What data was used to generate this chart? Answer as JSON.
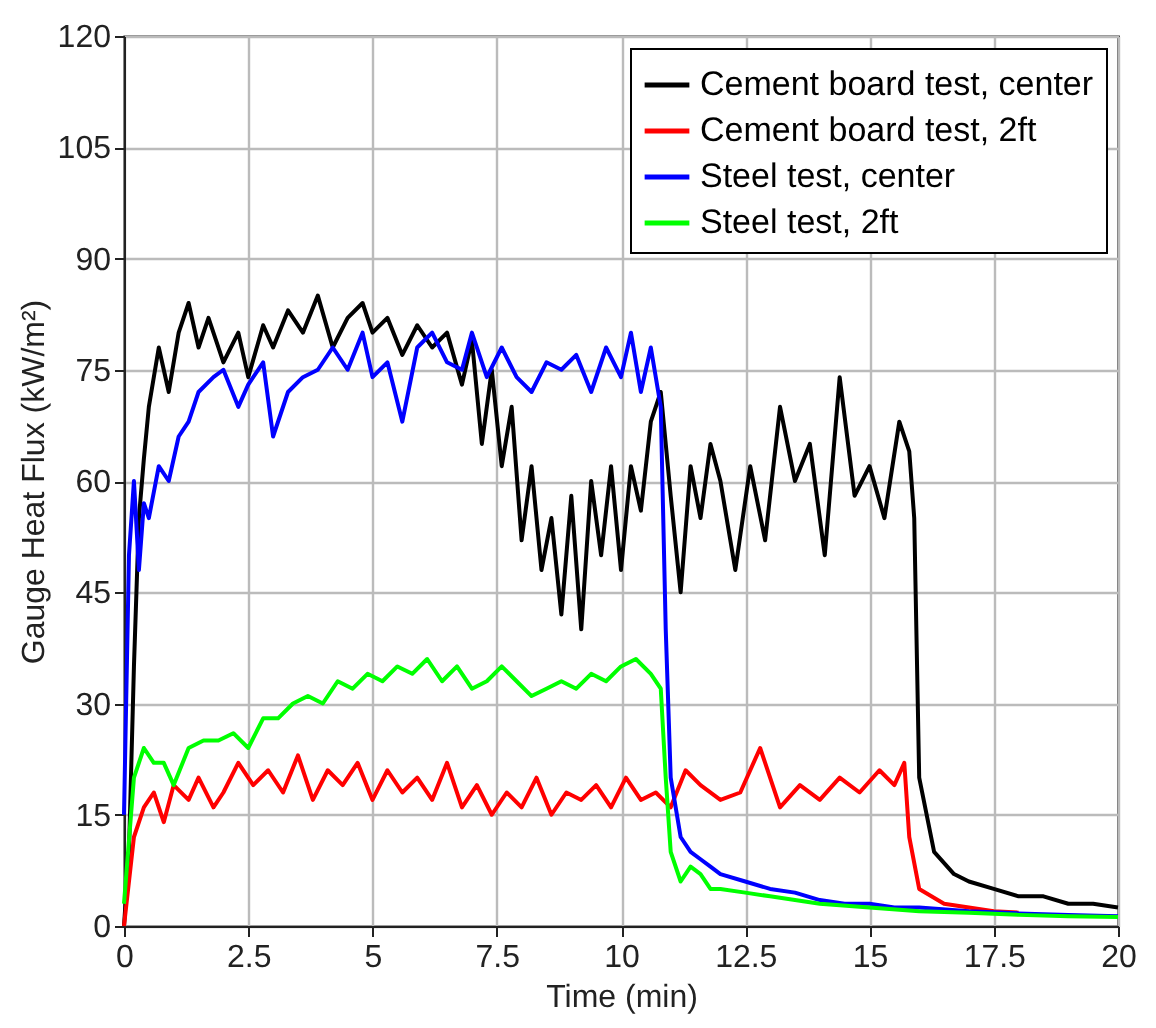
{
  "chart_data": {
    "type": "line",
    "xlabel": "Time (min)",
    "ylabel": "Gauge Heat Flux (kW/m²)",
    "xlim": [
      0,
      20
    ],
    "xticks": [
      0,
      2.5,
      5,
      7.5,
      10,
      12.5,
      15,
      17.5,
      20
    ],
    "ylim": [
      0,
      120
    ],
    "yticks": [
      0,
      15,
      30,
      45,
      60,
      75,
      90,
      105,
      120
    ],
    "grid": true,
    "legend": "top right",
    "line_style": "solid",
    "marker": "none",
    "series": [
      {
        "name": "Cement board test, center",
        "color": "#000000",
        "x": [
          0,
          0.1,
          0.2,
          0.3,
          0.4,
          0.5,
          0.7,
          0.9,
          1.1,
          1.3,
          1.5,
          1.7,
          2,
          2.3,
          2.5,
          2.8,
          3,
          3.3,
          3.6,
          3.9,
          4.2,
          4.5,
          4.8,
          5,
          5.3,
          5.6,
          5.9,
          6.2,
          6.5,
          6.8,
          7,
          7.2,
          7.4,
          7.6,
          7.8,
          8,
          8.2,
          8.4,
          8.6,
          8.8,
          9,
          9.2,
          9.4,
          9.6,
          9.8,
          10,
          10.2,
          10.4,
          10.6,
          10.8,
          11,
          11.2,
          11.4,
          11.6,
          11.8,
          12,
          12.3,
          12.6,
          12.9,
          13.2,
          13.5,
          13.8,
          14.1,
          14.4,
          14.7,
          15,
          15.3,
          15.6,
          15.8,
          15.9,
          16,
          16.3,
          16.7,
          17,
          17.5,
          18,
          18.5,
          19,
          19.5,
          20
        ],
        "values": [
          0,
          10,
          35,
          55,
          63,
          70,
          78,
          72,
          80,
          84,
          78,
          82,
          76,
          80,
          74,
          81,
          78,
          83,
          80,
          85,
          78,
          82,
          84,
          80,
          82,
          77,
          81,
          78,
          80,
          73,
          79,
          65,
          75,
          62,
          70,
          52,
          62,
          48,
          55,
          42,
          58,
          40,
          60,
          50,
          62,
          48,
          62,
          56,
          68,
          72,
          58,
          45,
          62,
          55,
          65,
          60,
          48,
          62,
          52,
          70,
          60,
          65,
          50,
          74,
          58,
          62,
          55,
          68,
          64,
          55,
          20,
          10,
          7,
          6,
          5,
          4,
          4,
          3,
          3,
          2.5
        ]
      },
      {
        "name": "Cement board test, 2ft",
        "color": "#ff0000",
        "x": [
          0,
          0.2,
          0.4,
          0.6,
          0.8,
          1,
          1.3,
          1.5,
          1.8,
          2,
          2.3,
          2.6,
          2.9,
          3.2,
          3.5,
          3.8,
          4.1,
          4.4,
          4.7,
          5,
          5.3,
          5.6,
          5.9,
          6.2,
          6.5,
          6.8,
          7.1,
          7.4,
          7.7,
          8,
          8.3,
          8.6,
          8.9,
          9.2,
          9.5,
          9.8,
          10.1,
          10.4,
          10.7,
          11,
          11.3,
          11.6,
          12,
          12.4,
          12.8,
          13.2,
          13.6,
          14,
          14.4,
          14.8,
          15.2,
          15.5,
          15.7,
          15.8,
          16,
          16.5,
          17,
          17.5,
          18
        ],
        "values": [
          0,
          12,
          16,
          18,
          14,
          19,
          17,
          20,
          16,
          18,
          22,
          19,
          21,
          18,
          23,
          17,
          21,
          19,
          22,
          17,
          21,
          18,
          20,
          17,
          22,
          16,
          19,
          15,
          18,
          16,
          20,
          15,
          18,
          17,
          19,
          16,
          20,
          17,
          18,
          16,
          21,
          19,
          17,
          18,
          24,
          16,
          19,
          17,
          20,
          18,
          21,
          19,
          22,
          12,
          5,
          3,
          2.5,
          2,
          1.8
        ]
      },
      {
        "name": "Steel test, center",
        "color": "#0000ff",
        "x": [
          0,
          0.1,
          0.2,
          0.3,
          0.4,
          0.5,
          0.7,
          0.9,
          1.1,
          1.3,
          1.5,
          1.8,
          2,
          2.3,
          2.5,
          2.8,
          3,
          3.3,
          3.6,
          3.9,
          4.2,
          4.5,
          4.8,
          5,
          5.3,
          5.6,
          5.9,
          6.2,
          6.5,
          6.8,
          7,
          7.3,
          7.6,
          7.9,
          8.2,
          8.5,
          8.8,
          9.1,
          9.4,
          9.7,
          10,
          10.2,
          10.4,
          10.6,
          10.8,
          10.9,
          11,
          11.2,
          11.4,
          11.6,
          11.8,
          12,
          12.5,
          13,
          13.5,
          14,
          14.5,
          15,
          15.5,
          16,
          17,
          18,
          19,
          20
        ],
        "values": [
          15,
          50,
          60,
          48,
          57,
          55,
          62,
          60,
          66,
          68,
          72,
          74,
          75,
          70,
          73,
          76,
          66,
          72,
          74,
          75,
          78,
          75,
          80,
          74,
          76,
          68,
          78,
          80,
          76,
          75,
          80,
          74,
          78,
          74,
          72,
          76,
          75,
          77,
          72,
          78,
          74,
          80,
          72,
          78,
          70,
          40,
          20,
          12,
          10,
          9,
          8,
          7,
          6,
          5,
          4.5,
          3.5,
          3,
          3,
          2.5,
          2.5,
          2,
          1.7,
          1.5,
          1.3
        ]
      },
      {
        "name": "Steel test, 2ft",
        "color": "#00ff00",
        "x": [
          0,
          0.2,
          0.4,
          0.6,
          0.8,
          1,
          1.3,
          1.6,
          1.9,
          2.2,
          2.5,
          2.8,
          3.1,
          3.4,
          3.7,
          4,
          4.3,
          4.6,
          4.9,
          5.2,
          5.5,
          5.8,
          6.1,
          6.4,
          6.7,
          7,
          7.3,
          7.6,
          7.9,
          8.2,
          8.5,
          8.8,
          9.1,
          9.4,
          9.7,
          10,
          10.3,
          10.6,
          10.8,
          10.9,
          11,
          11.2,
          11.4,
          11.6,
          11.8,
          12,
          12.5,
          13,
          14,
          15,
          16,
          17,
          18,
          19,
          20
        ],
        "values": [
          3,
          20,
          24,
          22,
          22,
          19,
          24,
          25,
          25,
          26,
          24,
          28,
          28,
          30,
          31,
          30,
          33,
          32,
          34,
          33,
          35,
          34,
          36,
          33,
          35,
          32,
          33,
          35,
          33,
          31,
          32,
          33,
          32,
          34,
          33,
          35,
          36,
          34,
          32,
          20,
          10,
          6,
          8,
          7,
          5,
          5,
          4.5,
          4,
          3,
          2.5,
          2,
          1.8,
          1.5,
          1.3,
          1.2
        ]
      }
    ]
  }
}
